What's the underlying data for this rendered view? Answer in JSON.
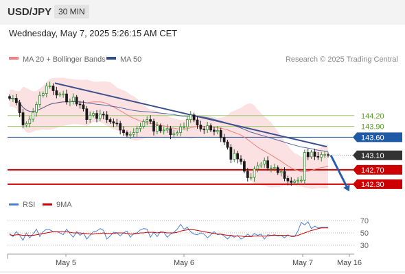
{
  "header": {
    "symbol": "USD/JPY",
    "timeframe": "30 MIN"
  },
  "datetime": "Wednesday, May 7, 2025 5:26:15 AM CET",
  "legend": {
    "ma20_label": "MA 20 + Bollinger Bands",
    "ma50_label": "MA 50",
    "ma20_color": "#f08080",
    "ma50_color": "#2c4c8c"
  },
  "credit": "Research © 2025 Trading Central",
  "colors": {
    "up": "#2e8b2e",
    "down": "#1a1a1a",
    "resistance": "#9acd6a",
    "pivot": "#1f5aa6",
    "support": "#cc0000",
    "last": "#333333",
    "band": "#f8c8c8",
    "trend": "#3a4f8c",
    "arrow": "#2a5ca8",
    "rsi": "#4a7fd4",
    "rsi_ma": "#cc0000"
  },
  "chart_data": [
    {
      "type": "candlestick",
      "x_axis": {
        "ticks": [
          "May 5",
          "May 6",
          "May 7",
          "May 16"
        ]
      },
      "y_range": [
        141.9,
        145.6
      ],
      "levels": [
        {
          "label": "144.20",
          "value": 144.2,
          "kind": "resistance"
        },
        {
          "label": "143.90",
          "value": 143.9,
          "kind": "resistance"
        },
        {
          "label": "143.60",
          "value": 143.6,
          "kind": "pivot"
        },
        {
          "label": "143.10",
          "value": 143.1,
          "kind": "last"
        },
        {
          "label": "142.70",
          "value": 142.7,
          "kind": "support"
        },
        {
          "label": "142.30",
          "value": 142.3,
          "kind": "support"
        }
      ],
      "close_series": [
        144.68,
        144.68,
        144.56,
        144.28,
        143.94,
        143.98,
        144.1,
        144.29,
        144.51,
        144.76,
        144.81,
        145.02,
        145.02,
        144.89,
        144.77,
        144.8,
        144.8,
        144.58,
        144.6,
        144.71,
        144.52,
        144.5,
        144.39,
        144.09,
        144.21,
        144.26,
        144.12,
        144.24,
        144.22,
        144.09,
        144.03,
        143.99,
        143.98,
        143.8,
        143.73,
        143.66,
        143.68,
        143.73,
        143.84,
        143.9,
        144.04,
        144.09,
        144.04,
        143.77,
        143.92,
        143.78,
        143.8,
        143.84,
        143.67,
        143.7,
        143.73,
        143.89,
        143.89,
        144.09,
        144.22,
        144.08,
        143.94,
        143.83,
        143.81,
        143.92,
        143.8,
        143.76,
        143.79,
        143.59,
        143.47,
        143.32,
        142.99,
        143.15,
        143.0,
        142.93,
        142.66,
        142.48,
        142.49,
        142.72,
        142.81,
        142.86,
        142.95,
        142.75,
        142.75,
        142.76,
        142.62,
        142.65,
        142.46,
        142.39,
        142.35,
        142.39,
        142.41,
        142.41,
        143.18,
        143.06,
        143.19,
        143.07,
        143.05,
        143.12,
        143.12,
        143.1
      ],
      "trendline": {
        "from": 145.1,
        "to": 143.34
      },
      "projection": {
        "from": 143.1,
        "to": 142.2
      }
    },
    {
      "type": "line",
      "name": "RSI",
      "series_labels": [
        "RSI",
        "9MA"
      ],
      "y_ticks": [
        70,
        50,
        30
      ],
      "y_range": [
        20,
        80
      ],
      "rsi": [
        49,
        44,
        52,
        46,
        38,
        50,
        42,
        48,
        56,
        44,
        52,
        56,
        55,
        52,
        52,
        50,
        47,
        56,
        49,
        43,
        52,
        46,
        50,
        40,
        46,
        52,
        53,
        57,
        54,
        40,
        45,
        51,
        50,
        45,
        50,
        53,
        43,
        49,
        50,
        55,
        57,
        56,
        43,
        51,
        44,
        52,
        51,
        43,
        48,
        51,
        56,
        64,
        56,
        59,
        52,
        48,
        47,
        50,
        48,
        42,
        47,
        52,
        47,
        48,
        45,
        40,
        46,
        43,
        46,
        40,
        43,
        48,
        44,
        49,
        46,
        48,
        40,
        47,
        46,
        47,
        45,
        46,
        42,
        47,
        44,
        44,
        53,
        67,
        63,
        68,
        57,
        61,
        58,
        59,
        59,
        59
      ],
      "rsi_ma": [
        47,
        46,
        47,
        47,
        46,
        46,
        46,
        46,
        47,
        48,
        49,
        50,
        51,
        52,
        52,
        52,
        52,
        52,
        51,
        50,
        50,
        50,
        49,
        49,
        48,
        48,
        49,
        49,
        50,
        49,
        49,
        49,
        50,
        50,
        50,
        49,
        48,
        48,
        49,
        50,
        50,
        51,
        51,
        51,
        50,
        51,
        51,
        50,
        50,
        50,
        51,
        53,
        54,
        55,
        55,
        55,
        54,
        53,
        52,
        51,
        50,
        49,
        48,
        48,
        47,
        46,
        46,
        45,
        45,
        45,
        44,
        44,
        44,
        45,
        45,
        45,
        45,
        45,
        46,
        46,
        46,
        46,
        46,
        46,
        45,
        45,
        46,
        48,
        50,
        52,
        54,
        55,
        57,
        58,
        58,
        58
      ]
    }
  ]
}
